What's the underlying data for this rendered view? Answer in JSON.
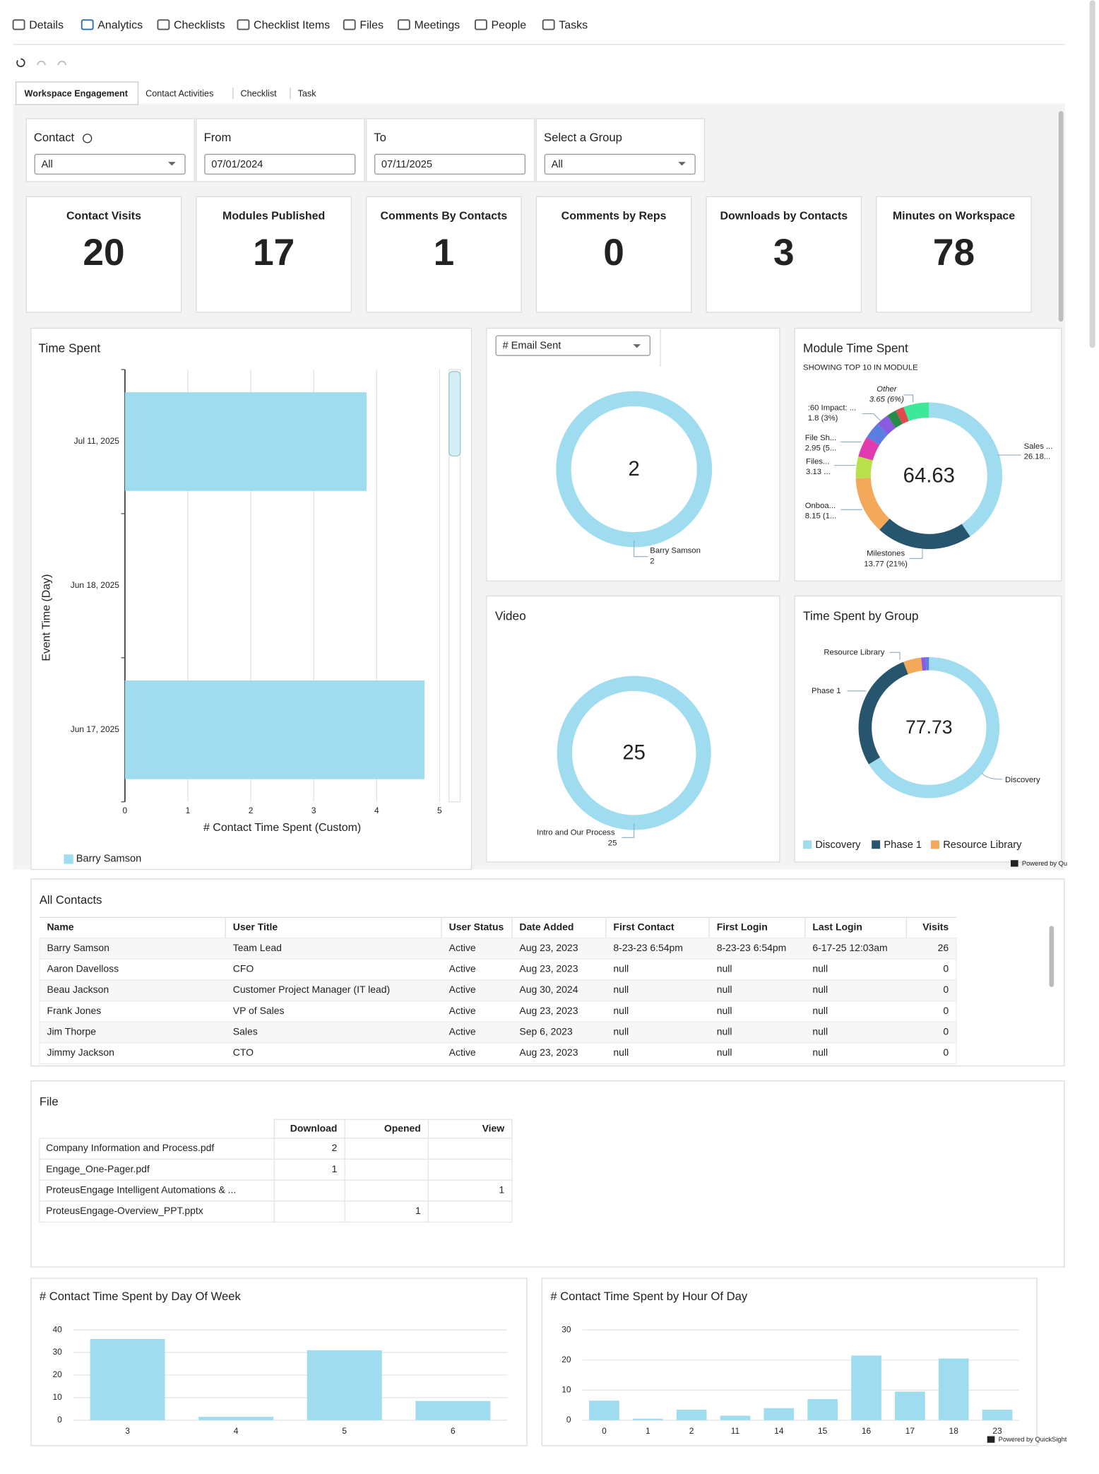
{
  "nav": [
    "Details",
    "Analytics",
    "Checklists",
    "Checklist Items",
    "Files",
    "Meetings",
    "People",
    "Tasks"
  ],
  "subtabs": [
    "Workspace Engagement",
    "Contact Activities",
    "Checklist",
    "Task"
  ],
  "filters": [
    {
      "label": "Contact",
      "value": "All"
    },
    {
      "label": "From",
      "value": "07/01/2024"
    },
    {
      "label": "To",
      "value": "07/11/2025"
    },
    {
      "label": "Select a Group",
      "value": "All"
    }
  ],
  "kpis": [
    {
      "label": "Contact Visits",
      "value": 20
    },
    {
      "label": "Modules Published",
      "value": 17
    },
    {
      "label": "Comments By Contacts",
      "value": 1
    },
    {
      "label": "Comments by Reps",
      "value": 0
    },
    {
      "label": "Downloads by Contacts",
      "value": 3
    },
    {
      "label": "Minutes on Workspace",
      "value": 78
    }
  ],
  "chart_data": [
    {
      "type": "bar",
      "orientation": "horizontal",
      "title": "Time Spent",
      "x_label": "# Contact Time Spent (Custom)",
      "y_label": "Event Time (Day)",
      "categories": [
        "Jul 11, 2025",
        "Jun 18, 2025",
        "Jun 17, 2025"
      ],
      "series": [
        {
          "name": "Barry Samson",
          "color": "#9fdcef",
          "values": [
            3.84,
            null,
            4.76
          ]
        }
      ],
      "xlim": [
        0,
        5
      ],
      "xticks": [
        0,
        1,
        2,
        3,
        4,
        5
      ],
      "grid": true
    },
    {
      "type": "pie",
      "title": "# Email Sent",
      "total": 2,
      "categories": [
        "Barry Samson"
      ],
      "values": [
        2
      ],
      "colors": [
        "#9fdcef"
      ]
    },
    {
      "type": "pie",
      "title": "Module Time Spent",
      "subtitle": "SHOWING TOP 10 IN MODULE",
      "total": 64.63,
      "categories": [
        "Sales ...",
        "Milestones",
        "Onboa...",
        "Files...",
        "File Sh...",
        null,
        ":60 Impact: ...",
        null,
        null,
        "Other"
      ],
      "values": [
        26.18,
        13.77,
        8.15,
        3.13,
        2.95,
        2.4,
        1.8,
        1.4,
        1.2,
        3.65
      ],
      "value_labels": [
        "26.18...",
        "13.77 (21%)",
        "8.15 (1...",
        "3.13 ...",
        "2.95 (5...",
        null,
        "1.8 (3%)",
        null,
        null,
        "3.65 (6%)"
      ],
      "colors": [
        "#9fdcef",
        "#27556e",
        "#f4a85a",
        "#b7e04a",
        "#e03cad",
        "#5a7fe0",
        "#8a5ae0",
        "#2a8a4a",
        "#e04a4a",
        "#3ee89a"
      ]
    },
    {
      "type": "pie",
      "title": "Video",
      "total": 25,
      "categories": [
        "Intro and Our Process"
      ],
      "values": [
        25
      ],
      "colors": [
        "#9fdcef"
      ]
    },
    {
      "type": "pie",
      "title": "Time Spent by Group",
      "total": 77.73,
      "categories": [
        "Discovery",
        "Phase 1",
        "Resource Library",
        null,
        null
      ],
      "values": [
        51.53,
        21.6,
        3.2,
        0.8,
        0.6
      ],
      "colors": [
        "#9fdcef",
        "#27556e",
        "#f4a85a",
        "#8a5ae0",
        "#5a7fe0"
      ],
      "legend": true
    },
    {
      "type": "bar",
      "title": "# Contact Time Spent by Day Of Week",
      "categories": [
        "3",
        "4",
        "5",
        "6"
      ],
      "values": [
        36,
        1.5,
        31,
        8.5
      ],
      "color": "#9fdcef",
      "ylim": [
        0,
        40
      ],
      "yticks": [
        0,
        10,
        20,
        30,
        40
      ],
      "grid": true
    },
    {
      "type": "bar",
      "title": "# Contact Time Spent by Hour Of Day",
      "categories": [
        "0",
        "1",
        "2",
        "11",
        "14",
        "15",
        "16",
        "17",
        "18",
        "23"
      ],
      "values": [
        6.5,
        0.5,
        3.5,
        1.5,
        4,
        7,
        21.5,
        9.5,
        20.5,
        3.5
      ],
      "color": "#9fdcef",
      "ylim": [
        0,
        30
      ],
      "yticks": [
        0,
        10,
        20,
        30
      ],
      "grid": true
    }
  ],
  "contacts": {
    "title": "All Contacts",
    "columns": [
      "Name",
      "User Title",
      "User Status",
      "Date Added",
      "First Contact",
      "First Login",
      "Last Login",
      "Visits"
    ],
    "rows": [
      [
        "Barry Samson",
        "Team Lead",
        "Active",
        "Aug 23, 2023",
        "8-23-23 6:54pm",
        "8-23-23 6:54pm",
        "6-17-25 12:03am",
        26
      ],
      [
        "Aaron Davelloss",
        "CFO",
        "Active",
        "Aug 23, 2023",
        "null",
        "null",
        "null",
        0
      ],
      [
        "Beau Jackson",
        "Customer Project Manager (IT lead)",
        "Active",
        "Aug 30, 2024",
        "null",
        "null",
        "null",
        0
      ],
      [
        "Frank Jones",
        "VP of Sales",
        "Active",
        "Aug 23, 2023",
        "null",
        "null",
        "null",
        0
      ],
      [
        "Jim Thorpe",
        "Sales",
        "Active",
        "Sep 6, 2023",
        "null",
        "null",
        "null",
        0
      ],
      [
        "Jimmy Jackson",
        "CTO",
        "Active",
        "Aug 23, 2023",
        "null",
        "null",
        "null",
        0
      ]
    ]
  },
  "files": {
    "title": "File",
    "columns": [
      "Download",
      "Opened",
      "View"
    ],
    "rows": [
      [
        "Company Information and Process.pdf",
        2,
        null,
        null
      ],
      [
        "Engage_One-Pager.pdf",
        1,
        null,
        null
      ],
      [
        "ProteusEngage Intelligent Automations & ...",
        null,
        null,
        1
      ],
      [
        "ProteusEngage-Overview_PPT.pptx",
        null,
        1,
        null
      ]
    ]
  },
  "powered_by": "Powered by QuickSight"
}
